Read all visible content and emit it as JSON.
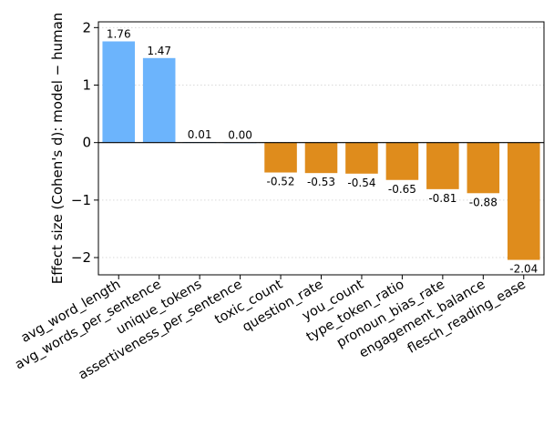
{
  "chart_data": {
    "type": "bar",
    "title": "",
    "xlabel": "",
    "ylabel": "Effect size (Cohen's d): model − human",
    "ylim": [
      -2.3,
      2.1
    ],
    "yticks": [
      -2,
      -1,
      0,
      1,
      2
    ],
    "ytick_labels": [
      "−2",
      "−1",
      "0",
      "1",
      "2"
    ],
    "grid": "horizontal dotted",
    "categories": [
      "avg_word_length",
      "avg_words_per_sentence",
      "unique_tokens",
      "assertiveness_per_sentence",
      "toxic_count",
      "question_rate",
      "you_count",
      "type_token_ratio",
      "pronoun_bias_rate",
      "engagement_balance",
      "flesch_reading_ease"
    ],
    "values": [
      1.76,
      1.47,
      0.01,
      0.0,
      -0.52,
      -0.53,
      -0.54,
      -0.65,
      -0.81,
      -0.88,
      -2.04
    ],
    "value_labels": [
      "1.76",
      "1.47",
      "0.01",
      "0.00",
      "-0.52",
      "-0.53",
      "-0.54",
      "-0.65",
      "-0.81",
      "-0.88",
      "-2.04"
    ],
    "colors": {
      "positive": "#6cb4fc",
      "negative": "#df8c1c",
      "zero_line": "#000000",
      "grid": "#d9d9d9"
    }
  }
}
